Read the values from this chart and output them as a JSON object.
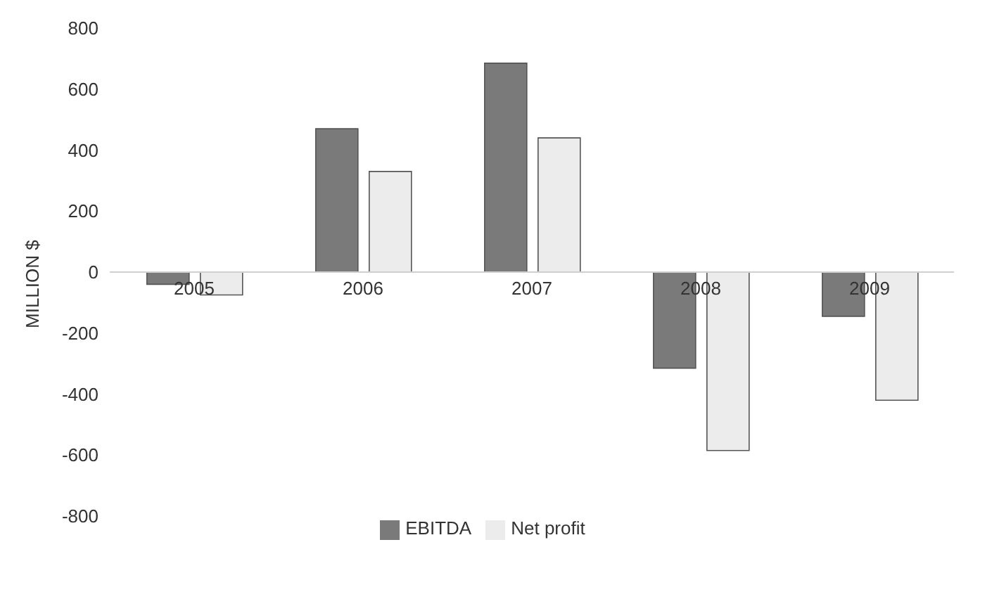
{
  "chart_data": {
    "type": "bar",
    "categories": [
      "2005",
      "2006",
      "2007",
      "2008",
      "2009"
    ],
    "series": [
      {
        "name": "EBITDA",
        "color": "#7a7a7a",
        "values": [
          -40,
          470,
          685,
          -315,
          -145
        ]
      },
      {
        "name": "Net profit",
        "color": "#ececec",
        "values": [
          -75,
          330,
          440,
          -585,
          -420
        ]
      }
    ],
    "ylim": [
      -800,
      800
    ],
    "yticks": [
      -800,
      -600,
      -400,
      -200,
      0,
      200,
      400,
      600,
      800
    ],
    "ylabel": "MILLION $",
    "legend": "bottom"
  }
}
